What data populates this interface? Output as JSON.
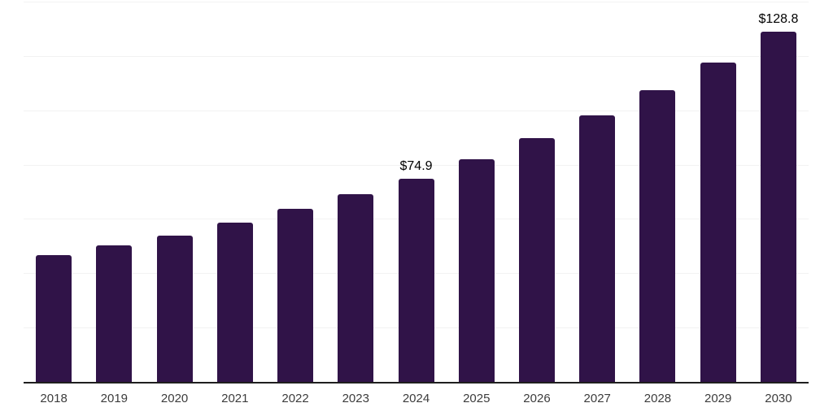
{
  "chart_data": {
    "type": "bar",
    "title": "",
    "xlabel": "",
    "ylabel": "",
    "categories": [
      "2018",
      "2019",
      "2020",
      "2021",
      "2022",
      "2023",
      "2024",
      "2025",
      "2026",
      "2027",
      "2028",
      "2029",
      "2030"
    ],
    "values": [
      46.8,
      50.2,
      53.8,
      58.5,
      63.6,
      69.1,
      74.9,
      82.0,
      89.7,
      98.2,
      107.3,
      117.7,
      128.8
    ],
    "bar_labels": [
      "",
      "",
      "",
      "",
      "",
      "",
      "$74.9",
      "",
      "",
      "",
      "",
      "",
      "$128.8"
    ],
    "ylim": [
      0,
      140
    ],
    "grid_step": 20,
    "grid_on": true,
    "legend": null,
    "colors": {
      "bar": "#301348",
      "grid": "#f2f2f2",
      "axis": "#1f1f1f",
      "tick_label": "#3c3c3c",
      "value_label": "#000000",
      "background": "#ffffff"
    }
  }
}
